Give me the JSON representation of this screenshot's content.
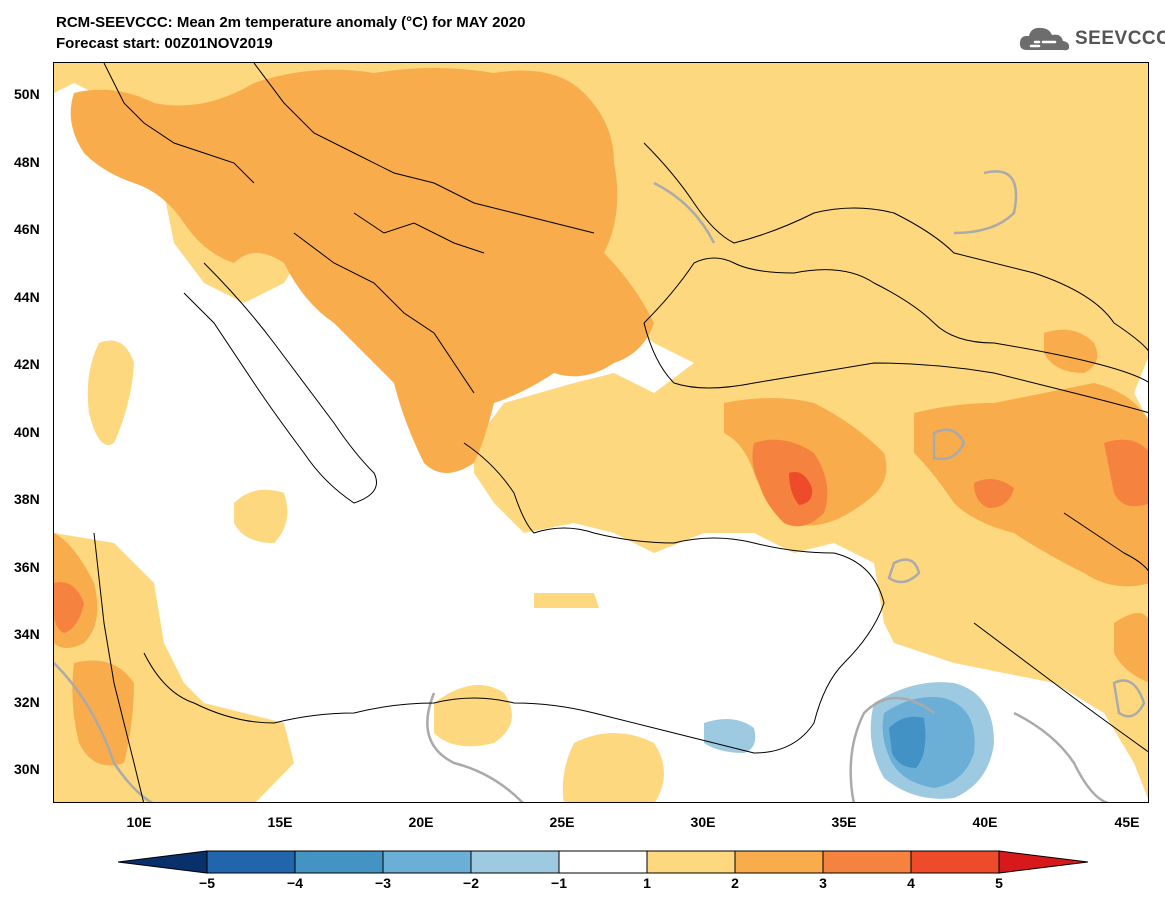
{
  "header": {
    "title_line1": "RCM-SEEVCCC: Mean 2m temperature anomaly (°C) for MAY 2020",
    "title_line2": "Forecast start: 00Z01NOV2019",
    "logo_text": "SEEVCCC"
  },
  "map": {
    "lat_labels": [
      "50N",
      "48N",
      "46N",
      "44N",
      "42N",
      "40N",
      "38N",
      "36N",
      "34N",
      "32N",
      "30N"
    ],
    "lon_labels": [
      "10E",
      "15E",
      "20E",
      "25E",
      "30E",
      "35E",
      "40E",
      "45E"
    ],
    "colors": {
      "land_background": "#ffffff",
      "anomaly_1_2": "#fdd87f",
      "anomaly_2_3": "#f9ac4c",
      "anomaly_3_4": "#f5823e",
      "anomaly_4_5": "#ee4b2b",
      "anomaly_-1_-2": "#9ecae1",
      "anomaly_-2_-3": "#6baed6",
      "anomaly_-3_-4": "#4292c6",
      "zero_contour": "#aaaaaa",
      "borders": "#000000"
    }
  },
  "colorbar": {
    "labels": [
      "−5",
      "−4",
      "−3",
      "−2",
      "−1",
      "1",
      "2",
      "3",
      "4",
      "5"
    ],
    "colors": [
      "#08306b",
      "#2166ac",
      "#4393c3",
      "#6baed6",
      "#9ecae1",
      "#ffffff",
      "#fdd87f",
      "#f9ac4c",
      "#f5823e",
      "#ee4b2b",
      "#d7191c"
    ]
  }
}
